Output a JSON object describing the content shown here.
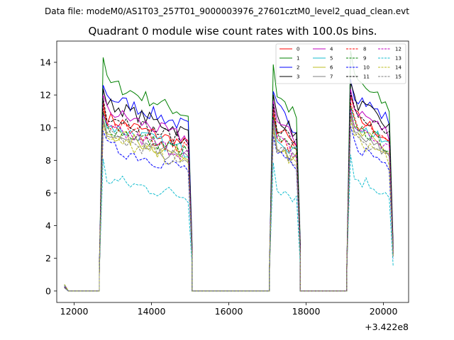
{
  "figure": {
    "suptitle": "Data file: modeM0/AS1T03_257T01_9000003976_27601cztM0_level2_quad_clean.evt",
    "title": "Quadrant 0 module wise count rates with 100.0s bins."
  },
  "chart_data": {
    "type": "line",
    "title": "Quadrant 0 module wise count rates with 100.0s bins.",
    "xlabel": "",
    "ylabel": "",
    "x_offset_label": "+3.422e8",
    "xlim": [
      11550,
      20650
    ],
    "ylim": [
      -0.7,
      15.3
    ],
    "xticks": [
      12000,
      14000,
      16000,
      18000,
      20000
    ],
    "xtick_labels": [
      "12000",
      "14000",
      "16000",
      "18000",
      "20000"
    ],
    "yticks": [
      0,
      2,
      4,
      6,
      8,
      10,
      12,
      14
    ],
    "ytick_labels": [
      "0",
      "2",
      "4",
      "6",
      "8",
      "10",
      "12",
      "14"
    ],
    "grid": false,
    "legend_position": "top-right",
    "segments": [
      {
        "start": 11750,
        "end": 12650,
        "on": false
      },
      {
        "start": 12650,
        "end": 15050,
        "on": true
      },
      {
        "start": 15050,
        "end": 17050,
        "on": false
      },
      {
        "start": 17050,
        "end": 17850,
        "on": true
      },
      {
        "start": 17850,
        "end": 19050,
        "on": false
      },
      {
        "start": 19050,
        "end": 20250,
        "on": true
      }
    ],
    "series": [
      {
        "name": "0",
        "color": "#ff0000",
        "dash": "solid",
        "level": 9.6,
        "first_bin": 11.6
      },
      {
        "name": "1",
        "color": "#008000",
        "dash": "solid",
        "level": 11.6,
        "first_bin": 14.3
      },
      {
        "name": "2",
        "color": "#0000ff",
        "dash": "solid",
        "level": 10.8,
        "first_bin": 12.6
      },
      {
        "name": "3",
        "color": "#000000",
        "dash": "solid",
        "level": 10.4,
        "first_bin": 12.4
      },
      {
        "name": "4",
        "color": "#bf00bf",
        "dash": "solid",
        "level": 10.0,
        "first_bin": 12.0
      },
      {
        "name": "5",
        "color": "#17becf",
        "dash": "solid",
        "level": 9.2,
        "first_bin": 10.9
      },
      {
        "name": "6",
        "color": "#bcbd22",
        "dash": "solid",
        "level": 8.8,
        "first_bin": 10.6
      },
      {
        "name": "7",
        "color": "#7f7f7f",
        "dash": "solid",
        "level": 8.6,
        "first_bin": 10.4
      },
      {
        "name": "8",
        "color": "#ff0000",
        "dash": "dashed",
        "level": 9.3,
        "first_bin": 11.2
      },
      {
        "name": "9",
        "color": "#008000",
        "dash": "dashed",
        "level": 9.1,
        "first_bin": 11.0
      },
      {
        "name": "10",
        "color": "#0000ff",
        "dash": "dashed",
        "level": 8.0,
        "first_bin": 9.8
      },
      {
        "name": "11",
        "color": "#000000",
        "dash": "dashed",
        "level": 9.8,
        "first_bin": 11.8
      },
      {
        "name": "12",
        "color": "#bf00bf",
        "dash": "dashed",
        "level": 9.0,
        "first_bin": 10.8
      },
      {
        "name": "13",
        "color": "#17becf",
        "dash": "dashed",
        "level": 6.2,
        "first_bin": 8.1
      },
      {
        "name": "14",
        "color": "#bcbd22",
        "dash": "dashed",
        "level": 8.4,
        "first_bin": 10.2
      },
      {
        "name": "15",
        "color": "#7f7f7f",
        "dash": "dashed",
        "level": 8.6,
        "first_bin": 10.5
      }
    ]
  }
}
